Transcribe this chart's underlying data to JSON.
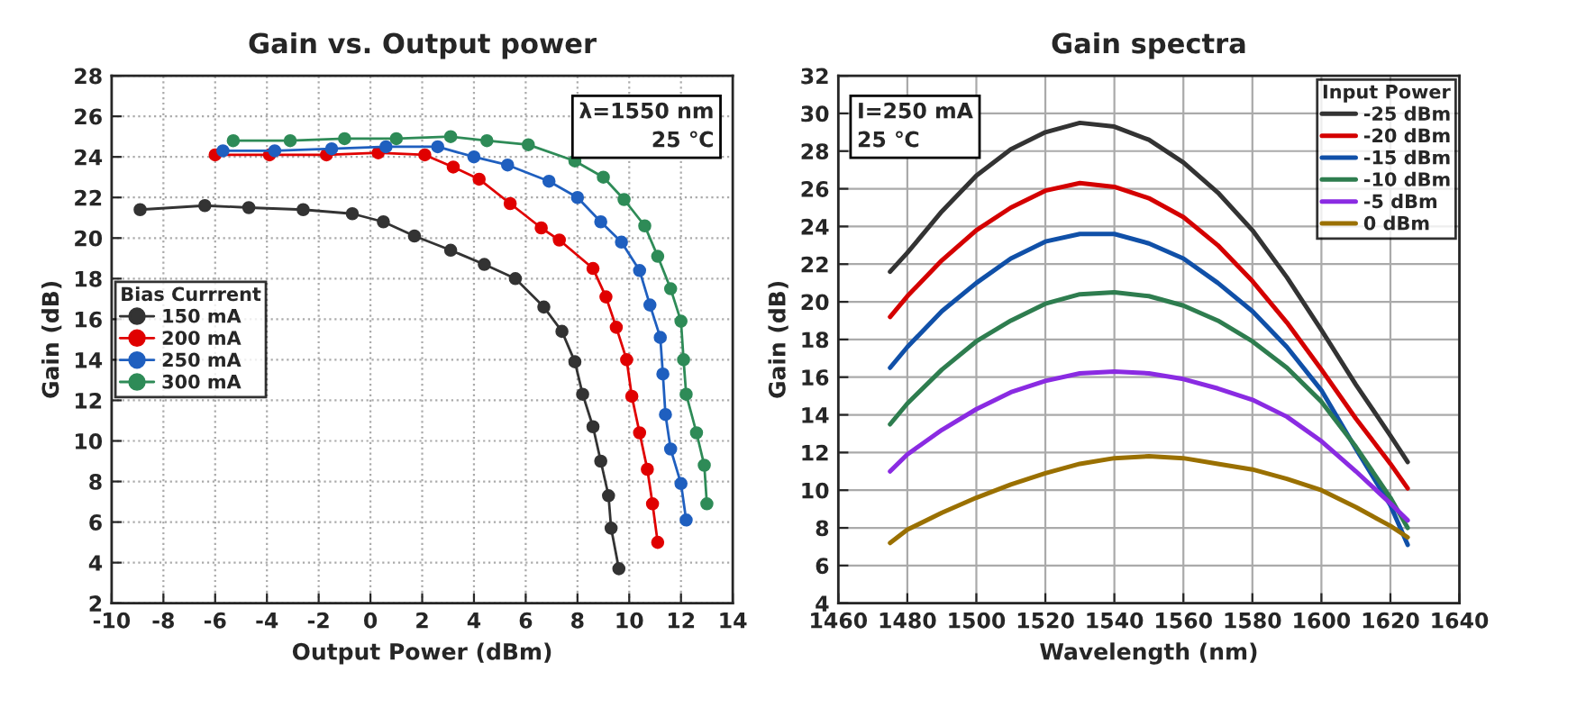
{
  "chart_data": [
    {
      "type": "line",
      "title": "Gain vs. Output power",
      "xlabel": "Output Power (dBm)",
      "ylabel": "Gain (dB)",
      "legend_title": "Bias Currrent",
      "legend": "left",
      "marker": "circle",
      "line_style": "solid",
      "grid": true,
      "xlim": [
        -10,
        14
      ],
      "xticks": [
        -10,
        -8,
        -6,
        -4,
        -2,
        0,
        2,
        4,
        6,
        8,
        10,
        12,
        14
      ],
      "ylim": [
        2,
        28
      ],
      "yticks": [
        2,
        4,
        6,
        8,
        10,
        12,
        14,
        16,
        18,
        20,
        22,
        24,
        26,
        28
      ],
      "annotations": [
        "λ=1550 nm\n25 ℃"
      ],
      "series": [
        {
          "name": "150 mA",
          "color": "#333333",
          "x": [
            -8.9,
            -6.4,
            -4.7,
            -2.6,
            -0.7,
            0.5,
            1.7,
            3.1,
            4.4,
            5.6,
            6.7,
            7.4,
            7.9,
            8.2,
            8.6,
            8.9,
            9.2,
            9.3,
            9.6
          ],
          "values": [
            21.4,
            21.6,
            21.5,
            21.4,
            21.2,
            20.8,
            20.1,
            19.4,
            18.7,
            18.0,
            16.6,
            15.4,
            13.9,
            12.3,
            10.7,
            9.0,
            7.3,
            5.7,
            3.7
          ]
        },
        {
          "name": "200 mA",
          "color": "#e00000",
          "x": [
            -6.0,
            -3.9,
            -1.7,
            0.3,
            2.1,
            3.2,
            4.2,
            5.4,
            6.6,
            7.3,
            8.6,
            9.1,
            9.5,
            9.9,
            10.1,
            10.4,
            10.7,
            10.9,
            11.1
          ],
          "values": [
            24.1,
            24.1,
            24.1,
            24.2,
            24.1,
            23.5,
            22.9,
            21.7,
            20.5,
            19.9,
            18.5,
            17.1,
            15.6,
            14.0,
            12.2,
            10.4,
            8.6,
            6.9,
            5.0
          ]
        },
        {
          "name": "250 mA",
          "color": "#1f5fbf",
          "x": [
            -5.7,
            -3.7,
            -1.5,
            0.6,
            2.6,
            4.0,
            5.3,
            6.9,
            8.0,
            8.9,
            9.7,
            10.4,
            10.8,
            11.2,
            11.3,
            11.4,
            11.6,
            12.0,
            12.2
          ],
          "values": [
            24.3,
            24.3,
            24.4,
            24.5,
            24.5,
            24.0,
            23.6,
            22.8,
            22.0,
            20.8,
            19.8,
            18.4,
            16.7,
            15.1,
            13.3,
            11.3,
            9.6,
            7.9,
            6.1
          ]
        },
        {
          "name": "300 mA",
          "color": "#2e8b57",
          "x": [
            -5.3,
            -3.1,
            -1.0,
            1.0,
            3.1,
            4.5,
            6.1,
            7.9,
            9.0,
            9.8,
            10.6,
            11.1,
            11.6,
            12.0,
            12.1,
            12.2,
            12.6,
            12.9,
            13.0
          ],
          "values": [
            24.8,
            24.8,
            24.9,
            24.9,
            25.0,
            24.8,
            24.6,
            23.8,
            23.0,
            21.9,
            20.6,
            19.1,
            17.5,
            15.9,
            14.0,
            12.3,
            10.4,
            8.8,
            6.9
          ]
        }
      ]
    },
    {
      "type": "line",
      "title": "Gain spectra",
      "xlabel": "Wavelength (nm)",
      "ylabel": "Gain (dB)",
      "legend_title": "Input Power",
      "legend": "top right",
      "line_style": "solid",
      "grid": true,
      "xlim": [
        1460,
        1640
      ],
      "xticks": [
        1460,
        1480,
        1500,
        1520,
        1540,
        1560,
        1580,
        1600,
        1620,
        1640
      ],
      "ylim": [
        4,
        32
      ],
      "yticks": [
        4,
        6,
        8,
        10,
        12,
        14,
        16,
        18,
        20,
        22,
        24,
        26,
        28,
        30,
        32
      ],
      "annotations": [
        "I=250 mA\n25 ℃"
      ],
      "x": [
        1475,
        1480,
        1490,
        1500,
        1510,
        1520,
        1530,
        1540,
        1550,
        1560,
        1570,
        1580,
        1590,
        1600,
        1610,
        1620,
        1625
      ],
      "series": [
        {
          "name": "-25 dBm",
          "color": "#333333",
          "values": [
            21.6,
            22.6,
            24.8,
            26.7,
            28.1,
            29.0,
            29.5,
            29.3,
            28.6,
            27.4,
            25.8,
            23.8,
            21.3,
            18.5,
            15.6,
            12.9,
            11.5
          ]
        },
        {
          "name": "-20 dBm",
          "color": "#d40000",
          "values": [
            19.2,
            20.3,
            22.2,
            23.8,
            25.0,
            25.9,
            26.3,
            26.1,
            25.5,
            24.5,
            23.0,
            21.1,
            18.9,
            16.4,
            13.8,
            11.4,
            10.1
          ]
        },
        {
          "name": "-15 dBm",
          "color": "#1050a8",
          "values": [
            16.5,
            17.6,
            19.5,
            21.0,
            22.3,
            23.2,
            23.6,
            23.6,
            23.1,
            22.3,
            21.0,
            19.5,
            17.6,
            15.3,
            12.2,
            9.2,
            7.1
          ]
        },
        {
          "name": "-10 dBm",
          "color": "#2e7d4f",
          "values": [
            13.5,
            14.6,
            16.4,
            17.9,
            19.0,
            19.9,
            20.4,
            20.5,
            20.3,
            19.8,
            19.0,
            17.9,
            16.5,
            14.7,
            12.3,
            9.6,
            8.0
          ]
        },
        {
          "name": "-5 dBm",
          "color": "#8a2be2",
          "values": [
            11.0,
            11.9,
            13.2,
            14.3,
            15.2,
            15.8,
            16.2,
            16.3,
            16.2,
            15.9,
            15.4,
            14.8,
            13.9,
            12.6,
            11.0,
            9.3,
            8.4
          ]
        },
        {
          "name": "0 dBm",
          "color": "#9a7000",
          "values": [
            7.2,
            7.9,
            8.8,
            9.6,
            10.3,
            10.9,
            11.4,
            11.7,
            11.8,
            11.7,
            11.4,
            11.1,
            10.6,
            10.0,
            9.1,
            8.1,
            7.5
          ]
        }
      ]
    }
  ]
}
